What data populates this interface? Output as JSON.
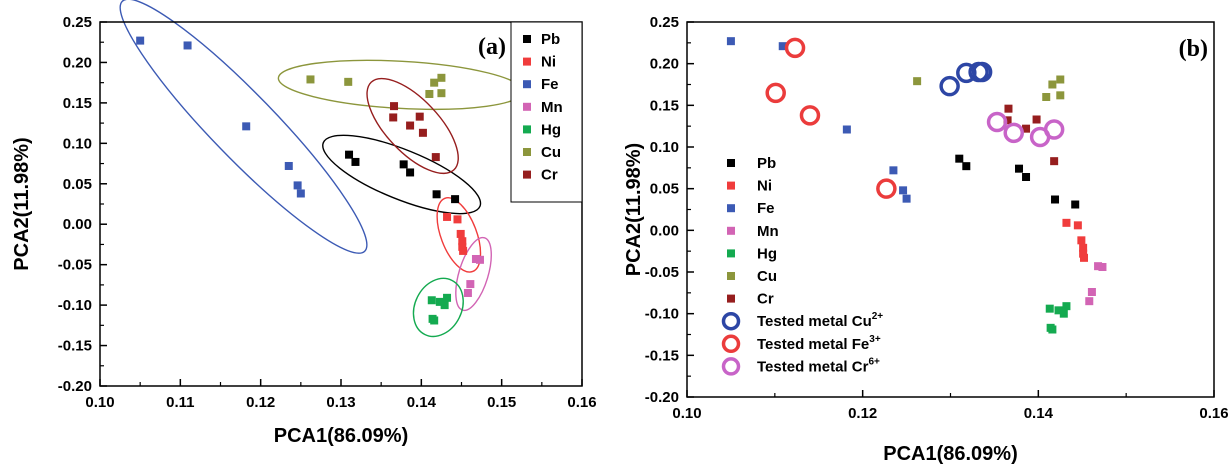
{
  "colors": {
    "Pb": "#000000",
    "Ni": "#f03c3c",
    "Fe": "#3c5ab4",
    "Mn": "#d264b4",
    "Hg": "#14aa50",
    "Cu": "#8c963c",
    "Cr": "#961e1e",
    "tested_Cu": "#2d46a5",
    "tested_Fe": "#eb3c3c",
    "tested_Cr": "#c864c8"
  },
  "chart_data": [
    {
      "type": "scatter",
      "panel_label": "(a)",
      "xlabel": "PCA1(86.09%)",
      "ylabel": "PCA2(11.98%)",
      "xlim": [
        0.1,
        0.16
      ],
      "ylim": [
        -0.2,
        0.25
      ],
      "xticks": [
        "0.10",
        "0.11",
        "0.12",
        "0.13",
        "0.14",
        "0.15",
        "0.16"
      ],
      "yticks": [
        "-0.20",
        "-0.15",
        "-0.10",
        "-0.05",
        "0.00",
        "0.05",
        "0.10",
        "0.15",
        "0.20",
        "0.25"
      ],
      "legend_position": "top-right",
      "series": [
        {
          "name": "Pb",
          "points": [
            [
              0.131,
              0.086
            ],
            [
              0.1318,
              0.077
            ],
            [
              0.1378,
              0.074
            ],
            [
              0.1386,
              0.064
            ],
            [
              0.1419,
              0.037
            ],
            [
              0.1442,
              0.031
            ]
          ]
        },
        {
          "name": "Ni",
          "points": [
            [
              0.1432,
              0.009
            ],
            [
              0.1445,
              0.006
            ],
            [
              0.1449,
              -0.012
            ],
            [
              0.1451,
              -0.021
            ],
            [
              0.1451,
              -0.028
            ],
            [
              0.1452,
              -0.033
            ]
          ]
        },
        {
          "name": "Fe",
          "points": [
            [
              0.105,
              0.227
            ],
            [
              0.1109,
              0.221
            ],
            [
              0.1182,
              0.121
            ],
            [
              0.1235,
              0.072
            ],
            [
              0.1246,
              0.048
            ],
            [
              0.125,
              0.038
            ]
          ]
        },
        {
          "name": "Mn",
          "points": [
            [
              0.1468,
              -0.043
            ],
            [
              0.1473,
              -0.044
            ],
            [
              0.1461,
              -0.074
            ],
            [
              0.1458,
              -0.085
            ]
          ]
        },
        {
          "name": "Hg",
          "points": [
            [
              0.1413,
              -0.094
            ],
            [
              0.1423,
              -0.096
            ],
            [
              0.1429,
              -0.1
            ],
            [
              0.1432,
              -0.091
            ],
            [
              0.1414,
              -0.117
            ],
            [
              0.1416,
              -0.119
            ]
          ]
        },
        {
          "name": "Cu",
          "points": [
            [
              0.1262,
              0.179
            ],
            [
              0.1309,
              0.176
            ],
            [
              0.1416,
              0.175
            ],
            [
              0.1425,
              0.181
            ],
            [
              0.141,
              0.161
            ],
            [
              0.1425,
              0.162
            ]
          ]
        },
        {
          "name": "Cr",
          "points": [
            [
              0.1366,
              0.146
            ],
            [
              0.1398,
              0.133
            ],
            [
              0.1365,
              0.132
            ],
            [
              0.1386,
              0.122
            ],
            [
              0.1402,
              0.113
            ],
            [
              0.1418,
              0.083
            ]
          ]
        }
      ]
    },
    {
      "type": "scatter",
      "panel_label": "(b)",
      "xlabel": "PCA1(86.09%)",
      "ylabel": "PCA2(11.98%)",
      "xlim": [
        0.1,
        0.16
      ],
      "ylim": [
        -0.2,
        0.25
      ],
      "xticks": [
        "0.10",
        "0.12",
        "0.14",
        "0.16"
      ],
      "yticks": [
        "-0.20",
        "-0.15",
        "-0.10",
        "-0.05",
        "0.00",
        "0.05",
        "0.10",
        "0.15",
        "0.20",
        "0.25"
      ],
      "legend_position": "middle-left",
      "series": [
        {
          "name": "Pb",
          "points": [
            [
              0.131,
              0.086
            ],
            [
              0.1318,
              0.077
            ],
            [
              0.1378,
              0.074
            ],
            [
              0.1386,
              0.064
            ],
            [
              0.1419,
              0.037
            ],
            [
              0.1442,
              0.031
            ]
          ]
        },
        {
          "name": "Ni",
          "points": [
            [
              0.1432,
              0.009
            ],
            [
              0.1445,
              0.006
            ],
            [
              0.1449,
              -0.012
            ],
            [
              0.1451,
              -0.021
            ],
            [
              0.1451,
              -0.028
            ],
            [
              0.1452,
              -0.033
            ]
          ]
        },
        {
          "name": "Fe",
          "points": [
            [
              0.105,
              0.227
            ],
            [
              0.1109,
              0.221
            ],
            [
              0.1182,
              0.121
            ],
            [
              0.1235,
              0.072
            ],
            [
              0.1246,
              0.048
            ],
            [
              0.125,
              0.038
            ]
          ]
        },
        {
          "name": "Mn",
          "points": [
            [
              0.1468,
              -0.043
            ],
            [
              0.1473,
              -0.044
            ],
            [
              0.1461,
              -0.074
            ],
            [
              0.1458,
              -0.085
            ]
          ]
        },
        {
          "name": "Hg",
          "points": [
            [
              0.1413,
              -0.094
            ],
            [
              0.1423,
              -0.096
            ],
            [
              0.1429,
              -0.1
            ],
            [
              0.1432,
              -0.091
            ],
            [
              0.1414,
              -0.117
            ],
            [
              0.1416,
              -0.119
            ]
          ]
        },
        {
          "name": "Cu",
          "points": [
            [
              0.1262,
              0.179
            ],
            [
              0.1409,
              0.16
            ],
            [
              0.1416,
              0.175
            ],
            [
              0.1425,
              0.181
            ],
            [
              0.1425,
              0.162
            ]
          ]
        },
        {
          "name": "Cr",
          "points": [
            [
              0.1366,
              0.146
            ],
            [
              0.1398,
              0.133
            ],
            [
              0.1365,
              0.132
            ],
            [
              0.1386,
              0.122
            ],
            [
              0.1418,
              0.083
            ]
          ]
        },
        {
          "name": "Tested metal Cu",
          "ion_sup": "2+",
          "marker": "open-circle",
          "points": [
            [
              0.1299,
              0.173
            ],
            [
              0.1318,
              0.189
            ],
            [
              0.1332,
              0.19
            ],
            [
              0.1336,
              0.19
            ]
          ]
        },
        {
          "name": "Tested metal Fe",
          "ion_sup": "3+",
          "marker": "open-circle",
          "points": [
            [
              0.1123,
              0.219
            ],
            [
              0.1101,
              0.165
            ],
            [
              0.114,
              0.138
            ],
            [
              0.1227,
              0.05
            ]
          ]
        },
        {
          "name": "Tested metal Cr",
          "ion_sup": "6+",
          "marker": "open-circle",
          "points": [
            [
              0.1353,
              0.13
            ],
            [
              0.1372,
              0.117
            ],
            [
              0.1402,
              0.112
            ],
            [
              0.1418,
              0.121
            ]
          ]
        }
      ]
    }
  ]
}
